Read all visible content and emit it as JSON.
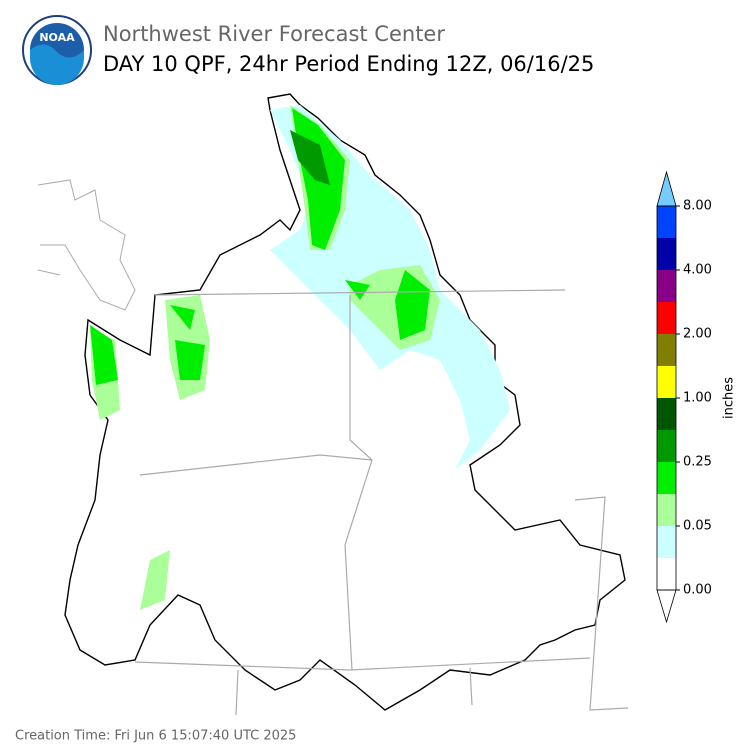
{
  "header": {
    "organization": "Northwest River Forecast Center",
    "title": "DAY 10 QPF, 24hr Period Ending 12Z, 06/16/25"
  },
  "logo": {
    "text": "NOAA"
  },
  "colorbar": {
    "label": "inches",
    "ticks": [
      "0.00",
      "0.05",
      "0.25",
      "1.00",
      "2.00",
      "4.00",
      "8.00"
    ],
    "colors": [
      "#ffffff",
      "#ccffff",
      "#aaff99",
      "#00ee00",
      "#009900",
      "#005500",
      "#ffff00",
      "#807f00",
      "#ff0000",
      "#880088",
      "#0000aa",
      "#0044ff"
    ],
    "over_color": "#77ccff"
  },
  "footer": {
    "creation_time": "Creation Time: Fri Jun 6 15:07:40 UTC 2025"
  }
}
